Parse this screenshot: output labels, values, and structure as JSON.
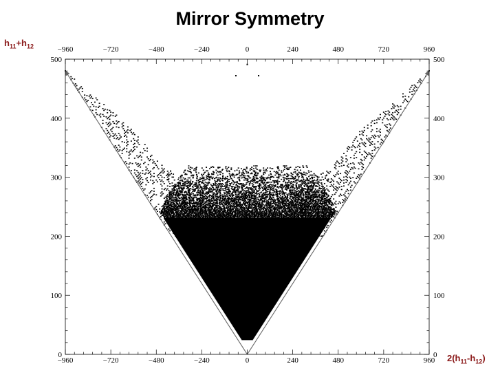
{
  "title": "Mirror Symmetry",
  "ylabel": {
    "base": "h",
    "sub1": "11",
    "plus": "+h",
    "sub2": "12"
  },
  "xlabel": {
    "pre": "2(h",
    "sub1": "11",
    "minus": "-h",
    "sub2": "12",
    "post": ")"
  },
  "chart_data": {
    "type": "scatter",
    "title": "Mirror Symmetry",
    "xlim": [
      -960,
      960
    ],
    "ylim": [
      0,
      500
    ],
    "x_ticks": [
      -960,
      -720,
      -480,
      -240,
      0,
      240,
      480,
      720,
      960
    ],
    "y_ticks": [
      0,
      100,
      200,
      300,
      400,
      500
    ],
    "grid": false,
    "series": [
      {
        "boundary_points": [
          {
            "x": -960,
            "y": 480
          },
          {
            "x": -600,
            "y": 380
          },
          {
            "x": -480,
            "y": 330
          },
          {
            "x": -300,
            "y": 280
          },
          {
            "x": -120,
            "y": 110
          },
          {
            "x": 0,
            "y": 25
          },
          {
            "x": 120,
            "y": 110
          },
          {
            "x": 300,
            "y": 280
          },
          {
            "x": 480,
            "y": 330
          },
          {
            "x": 600,
            "y": 380
          },
          {
            "x": 960,
            "y": 480
          }
        ],
        "apex_points": [
          {
            "x": 0,
            "y": 491
          },
          {
            "x": -60,
            "y": 472
          },
          {
            "x": 60,
            "y": 472
          }
        ]
      }
    ],
    "arrows": [
      {
        "from": {
          "x": 0,
          "y": 0
        },
        "to": {
          "x": -960,
          "y": 480
        }
      },
      {
        "from": {
          "x": 0,
          "y": 0
        },
        "to": {
          "x": 960,
          "y": 480
        }
      }
    ]
  }
}
